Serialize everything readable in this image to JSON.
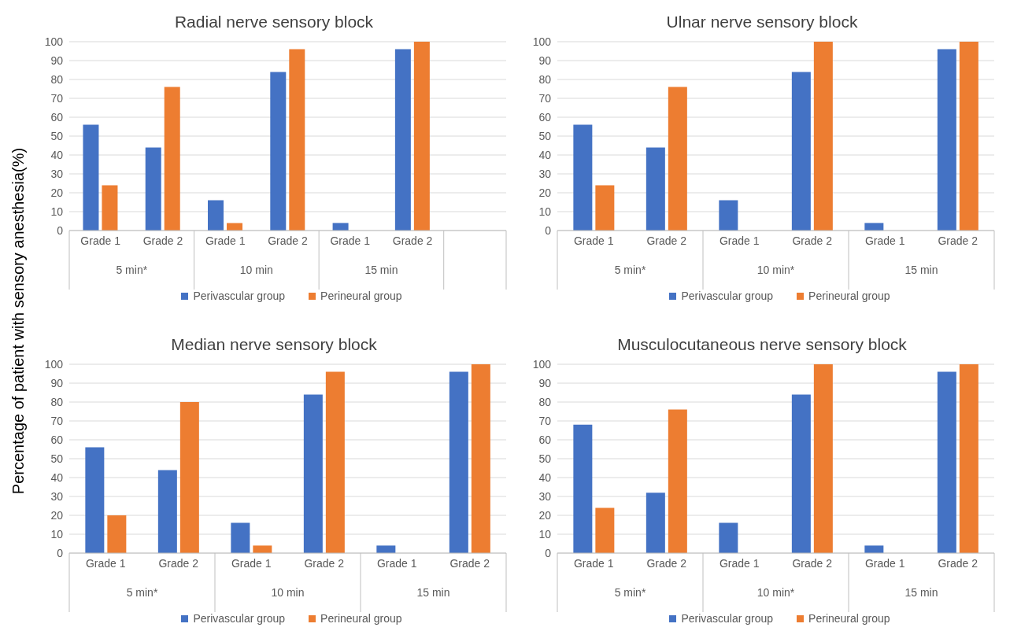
{
  "chart_data": [
    {
      "type": "bar",
      "title": "Radial nerve sensory block",
      "ylabel": "Percentage of patient with sensory anesthesia(%)",
      "categories": [
        "Grade 1",
        "Grade 2",
        "Grade 1",
        "Grade 2",
        "Grade 1",
        "Grade 2",
        null
      ],
      "annotations": [
        "5 min*",
        "10 min",
        "15 min"
      ],
      "series": [
        {
          "name": "Perivascular group",
          "color": "#4472c4",
          "values": [
            56,
            44,
            16,
            84,
            4,
            96,
            null
          ]
        },
        {
          "name": "Perineural group",
          "color": "#ed7d31",
          "values": [
            24,
            76,
            4,
            96,
            0,
            100,
            null
          ]
        }
      ],
      "ylim": [
        0,
        100
      ],
      "yticks": [
        0,
        10,
        20,
        30,
        40,
        50,
        60,
        70,
        80,
        90,
        100
      ],
      "grid": "y",
      "legend": "bottom"
    },
    {
      "type": "bar",
      "title": "Ulnar nerve sensory block",
      "categories": [
        "Grade 1",
        "Grade 2",
        "Grade 1",
        "Grade 2",
        "Grade 1",
        "Grade 2"
      ],
      "annotations": [
        "5 min*",
        "10 min*",
        "15 min"
      ],
      "series": [
        {
          "name": "Perivascular group",
          "color": "#4472c4",
          "values": [
            56,
            44,
            16,
            84,
            4,
            96
          ]
        },
        {
          "name": "Perineural group",
          "color": "#ed7d31",
          "values": [
            24,
            76,
            0,
            100,
            0,
            100
          ]
        }
      ],
      "ylim": [
        0,
        100
      ],
      "yticks": [
        0,
        10,
        20,
        30,
        40,
        50,
        60,
        70,
        80,
        90,
        100
      ],
      "grid": "y",
      "legend": "bottom"
    },
    {
      "type": "bar",
      "title": "Median nerve sensory block",
      "categories": [
        "Grade 1",
        "Grade 2",
        "Grade 1",
        "Grade 2",
        "Grade 1",
        "Grade 2"
      ],
      "annotations": [
        "5 min*",
        "10 min",
        "15 min"
      ],
      "series": [
        {
          "name": "Perivascular group",
          "color": "#4472c4",
          "values": [
            56,
            44,
            16,
            84,
            4,
            96
          ]
        },
        {
          "name": "Perineural group",
          "color": "#ed7d31",
          "values": [
            20,
            80,
            4,
            96,
            0,
            100
          ]
        }
      ],
      "ylim": [
        0,
        100
      ],
      "yticks": [
        0,
        10,
        20,
        30,
        40,
        50,
        60,
        70,
        80,
        90,
        100
      ],
      "grid": "y",
      "legend": "bottom"
    },
    {
      "type": "bar",
      "title": "Musculocutaneous nerve sensory block",
      "categories": [
        "Grade 1",
        "Grade 2",
        "Grade 1",
        "Grade 2",
        "Grade 1",
        "Grade 2"
      ],
      "annotations": [
        "5 min*",
        "10 min*",
        "15 min"
      ],
      "series": [
        {
          "name": "Perivascular group",
          "color": "#4472c4",
          "values": [
            68,
            32,
            16,
            84,
            4,
            96
          ]
        },
        {
          "name": "Perineural group",
          "color": "#ed7d31",
          "values": [
            24,
            76,
            0,
            100,
            0,
            100
          ]
        }
      ],
      "ylim": [
        0,
        100
      ],
      "yticks": [
        0,
        10,
        20,
        30,
        40,
        50,
        60,
        70,
        80,
        90,
        100
      ],
      "grid": "y",
      "legend": "bottom"
    }
  ]
}
